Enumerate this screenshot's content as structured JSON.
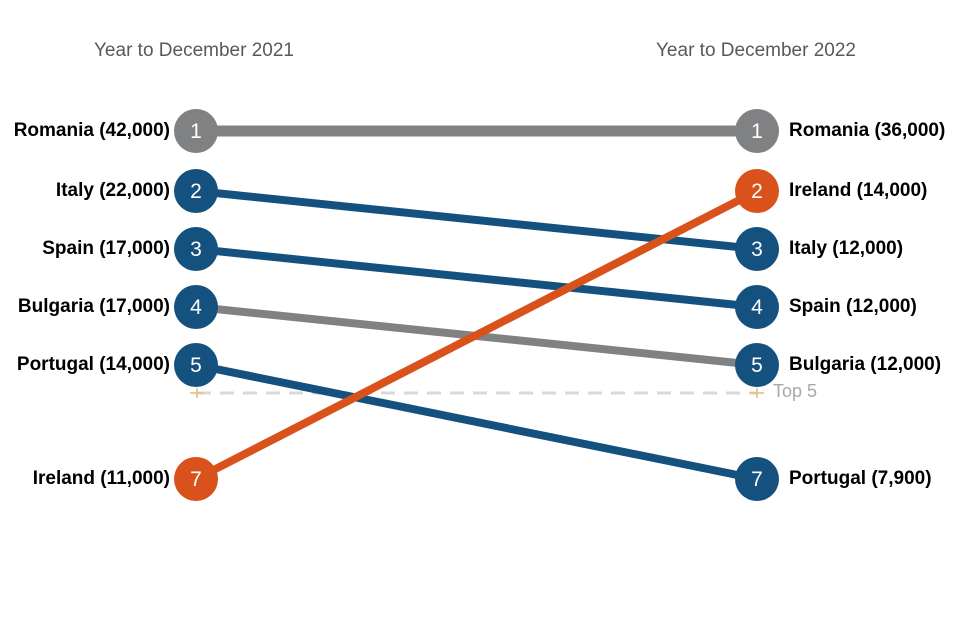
{
  "chart_data": {
    "type": "slope",
    "title_left": "Year to December 2021",
    "title_right": "Year to December 2022",
    "reference_line_label": "Top 5",
    "reference_line_after_rank": 5,
    "colors": {
      "blue": "#15517E",
      "orange": "#D9521B",
      "gray": "#808183",
      "reference_dash": "#D9D9D9",
      "reference_label": "#A8A8A8",
      "title_text": "#595959",
      "label_text": "#000000",
      "plus_marker": "#E6BE82",
      "node_text": "#FFFFFF"
    },
    "series": [
      {
        "name": "Romania",
        "left_rank": 1,
        "right_rank": 1,
        "left_value": 42000,
        "right_value": 36000,
        "left_label": "Romania (42,000)",
        "right_label": "Romania (36,000)",
        "line_color": "gray",
        "node_color": "gray",
        "line_width": 11
      },
      {
        "name": "Italy",
        "left_rank": 2,
        "right_rank": 3,
        "left_value": 22000,
        "right_value": 12000,
        "left_label": "Italy (22,000)",
        "right_label": "Italy (12,000)",
        "line_color": "blue",
        "node_color": "blue",
        "line_width": 8
      },
      {
        "name": "Spain",
        "left_rank": 3,
        "right_rank": 4,
        "left_value": 17000,
        "right_value": 12000,
        "left_label": "Spain (17,000)",
        "right_label": "Spain (12,000)",
        "line_color": "blue",
        "node_color": "blue",
        "line_width": 8
      },
      {
        "name": "Bulgaria",
        "left_rank": 4,
        "right_rank": 5,
        "left_value": 17000,
        "right_value": 12000,
        "left_label": "Bulgaria (17,000)",
        "right_label": "Bulgaria (12,000)",
        "line_color": "gray",
        "node_color": "blue",
        "line_width": 8
      },
      {
        "name": "Portugal",
        "left_rank": 5,
        "right_rank": 7,
        "left_value": 14000,
        "right_value": 7900,
        "left_label": "Portugal (14,000)",
        "right_label": "Portugal (7,900)",
        "line_color": "blue",
        "node_color": "blue",
        "line_width": 8
      },
      {
        "name": "Ireland",
        "left_rank": 7,
        "right_rank": 2,
        "left_value": 11000,
        "right_value": 14000,
        "left_label": "Ireland (11,000)",
        "right_label": "Ireland (14,000)",
        "line_color": "orange",
        "node_color": "orange",
        "line_width": 8
      }
    ]
  }
}
